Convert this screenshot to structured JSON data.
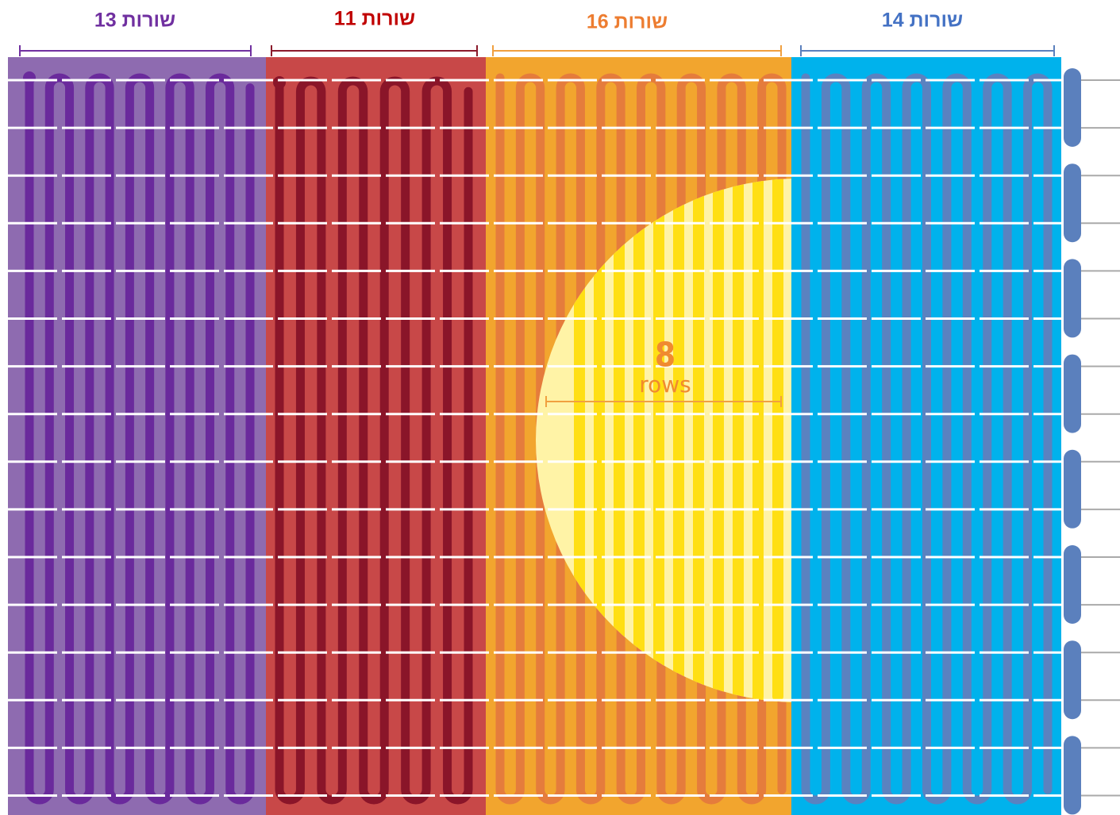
{
  "columns": [
    {
      "label": "13 שורות",
      "color": "#7030a0"
    },
    {
      "label": "11 שורות",
      "color": "#c00000"
    },
    {
      "label": "16 שורות",
      "color": "#ed7d31"
    },
    {
      "label": "14 שורות",
      "color": "#4472c4"
    }
  ],
  "inset": {
    "number": 8,
    "unit": "rows"
  }
}
